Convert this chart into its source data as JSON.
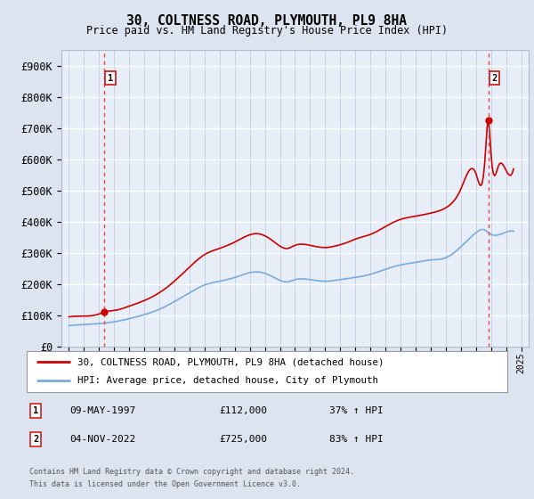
{
  "title": "30, COLTNESS ROAD, PLYMOUTH, PL9 8HA",
  "subtitle": "Price paid vs. HM Land Registry's House Price Index (HPI)",
  "ylabel_ticks": [
    "£0",
    "£100K",
    "£200K",
    "£300K",
    "£400K",
    "£500K",
    "£600K",
    "£700K",
    "£800K",
    "£900K"
  ],
  "ytick_values": [
    0,
    100000,
    200000,
    300000,
    400000,
    500000,
    600000,
    700000,
    800000,
    900000
  ],
  "ylim": [
    0,
    950000
  ],
  "xlim_start": 1994.5,
  "xlim_end": 2025.5,
  "sale1_x": 1997.36,
  "sale1_y": 112000,
  "sale2_x": 2022.84,
  "sale2_y": 725000,
  "sale1_label": "1",
  "sale2_label": "2",
  "sale1_date": "09-MAY-1997",
  "sale1_price": "£112,000",
  "sale1_hpi": "37% ↑ HPI",
  "sale2_date": "04-NOV-2022",
  "sale2_price": "£725,000",
  "sale2_hpi": "83% ↑ HPI",
  "legend_line1": "30, COLTNESS ROAD, PLYMOUTH, PL9 8HA (detached house)",
  "legend_line2": "HPI: Average price, detached house, City of Plymouth",
  "footer1": "Contains HM Land Registry data © Crown copyright and database right 2024.",
  "footer2": "This data is licensed under the Open Government Licence v3.0.",
  "bg_color": "#dce4f0",
  "plot_bg_color": "#dce4f0",
  "chart_bg_color": "#e8eef8",
  "grid_color": "#c8d0e0",
  "red_line_color": "#cc0000",
  "blue_line_color": "#7aabdc",
  "dashed_line_color": "#ee4444"
}
